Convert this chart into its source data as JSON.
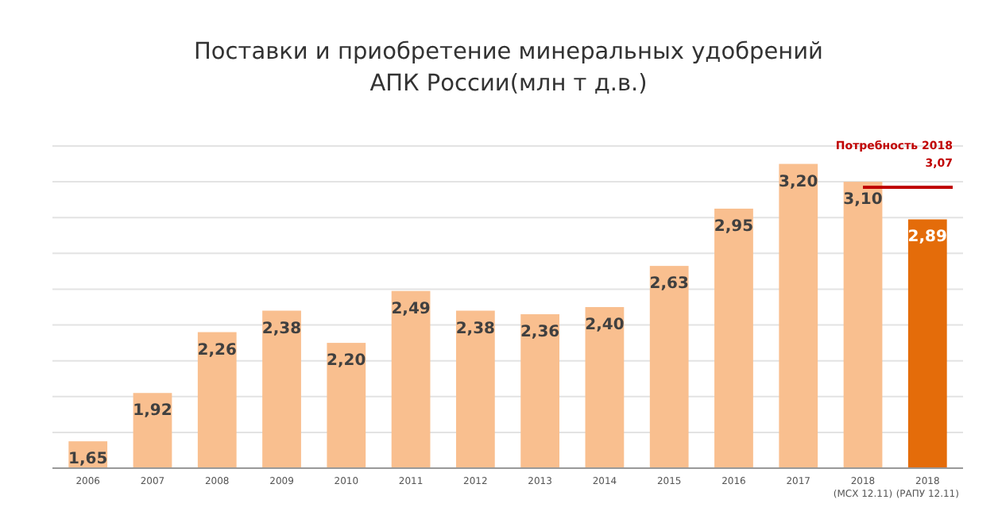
{
  "chart_data": {
    "type": "bar",
    "title": "Поставки и приобретение минеральных удобрений\nАПК России(млн т д.в.)",
    "categories": [
      "2006",
      "2007",
      "2008",
      "2009",
      "2010",
      "2011",
      "2012",
      "2013",
      "2014",
      "2015",
      "2016",
      "2017",
      "2018\n(МСХ 12.11)",
      "2018\n(РАПУ 12.11)"
    ],
    "values": [
      1.65,
      1.92,
      2.26,
      2.38,
      2.2,
      2.49,
      2.38,
      2.36,
      2.4,
      2.63,
      2.95,
      3.2,
      3.1,
      2.89
    ],
    "value_labels": [
      "1,65",
      "1,92",
      "2,26",
      "2,38",
      "2,20",
      "2,49",
      "2,38",
      "2,36",
      "2,40",
      "2,63",
      "2,95",
      "3,20",
      "3,10",
      "2,89"
    ],
    "colors": [
      "#f9bf8f",
      "#f9bf8f",
      "#f9bf8f",
      "#f9bf8f",
      "#f9bf8f",
      "#f9bf8f",
      "#f9bf8f",
      "#f9bf8f",
      "#f9bf8f",
      "#f9bf8f",
      "#f9bf8f",
      "#f9bf8f",
      "#f9bf8f",
      "#e46c0a"
    ],
    "ylim": [
      1.5,
      3.3
    ],
    "yticks": [
      {
        "value": 1.5,
        "label": null
      },
      {
        "value": 1.7,
        "label": null
      },
      {
        "value": 1.9,
        "label": null
      },
      {
        "value": 2.1,
        "label": null
      },
      {
        "value": 2.3,
        "label": null
      },
      {
        "value": 2.5,
        "label": null
      },
      {
        "value": 2.7,
        "label": null
      },
      {
        "value": 2.9,
        "label": null
      },
      {
        "value": 3.1,
        "label": null
      },
      {
        "value": 3.3,
        "label": null
      }
    ],
    "grid": true,
    "tick_labels": "x",
    "ref_lines": [
      {
        "axis": "y",
        "value": 3.07,
        "label": "Потребность 2018\n3,07",
        "color": "#c00000"
      }
    ]
  }
}
